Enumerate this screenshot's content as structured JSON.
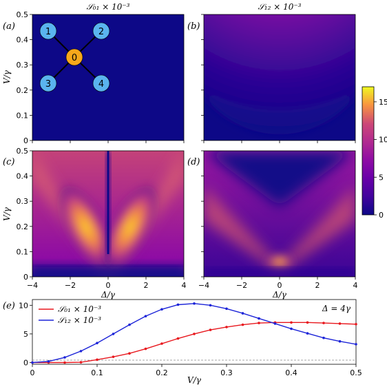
{
  "chart_data": [
    {
      "panel": "(a)",
      "type": "heatmap",
      "title": "𝒮₀₁ × 10⁻³",
      "xlabel": "",
      "ylabel": "V/γ",
      "xlim": [
        -4,
        4
      ],
      "ylim": [
        0,
        0.5
      ],
      "x_ticks": [],
      "y_ticks": [
        "0",
        "0.1",
        "0.2",
        "0.3",
        "0.4",
        "0.5"
      ],
      "description_values": "uniform near 0 over entire range",
      "inset_graph": {
        "nodes": [
          {
            "label": "0",
            "color": "#f7a81b",
            "pos": "center"
          },
          {
            "label": "1",
            "color": "#5ab4ef",
            "pos": "top-left"
          },
          {
            "label": "2",
            "color": "#5ab4ef",
            "pos": "top-right"
          },
          {
            "label": "3",
            "color": "#5ab4ef",
            "pos": "bottom-left"
          },
          {
            "label": "4",
            "color": "#5ab4ef",
            "pos": "bottom-right"
          }
        ],
        "edges": [
          [
            "0",
            "1"
          ],
          [
            "0",
            "2"
          ],
          [
            "0",
            "3"
          ],
          [
            "0",
            "4"
          ]
        ]
      }
    },
    {
      "panel": "(b)",
      "type": "heatmap",
      "title": "𝒮₁₂ × 10⁻³",
      "xlabel": "",
      "ylabel": "",
      "xlim": [
        -4,
        4
      ],
      "ylim": [
        0,
        0.5
      ],
      "x_ticks": [],
      "y_ticks": []
    },
    {
      "panel": "(c)",
      "type": "heatmap",
      "title": "",
      "xlabel": "Δ/γ",
      "ylabel": "V/γ",
      "xlim": [
        -4,
        4
      ],
      "ylim": [
        0,
        0.5
      ],
      "x_ticks": [
        "−4",
        "−2",
        "0",
        "2",
        "4"
      ],
      "y_ticks": [
        "0",
        "0.1",
        "0.2",
        "0.3",
        "0.4",
        "0.5"
      ]
    },
    {
      "panel": "(d)",
      "type": "heatmap",
      "title": "",
      "xlabel": "Δ/γ",
      "ylabel": "",
      "xlim": [
        -4,
        4
      ],
      "ylim": [
        0,
        0.5
      ],
      "x_ticks": [
        "−4",
        "−2",
        "0",
        "2",
        "4"
      ],
      "y_ticks": []
    },
    {
      "panel": "colorbar",
      "type": "colorbar",
      "range": [
        0,
        17
      ],
      "ticks": [
        "0",
        "5",
        "10",
        "15"
      ],
      "colormap": "plasma"
    },
    {
      "panel": "(e)",
      "type": "line",
      "title": "",
      "xlabel": "V/γ",
      "ylabel": "",
      "xlim": [
        0,
        0.5
      ],
      "ylim": [
        -0.3,
        11
      ],
      "x_ticks": [
        "0",
        "0.1",
        "0.2",
        "0.3",
        "0.4",
        "0.5"
      ],
      "y_ticks": [
        "0",
        "5",
        "10"
      ],
      "annotation": "Δ = 4γ",
      "legend_position": "top-left",
      "x": [
        0,
        0.025,
        0.05,
        0.075,
        0.1,
        0.125,
        0.15,
        0.175,
        0.2,
        0.225,
        0.25,
        0.275,
        0.3,
        0.325,
        0.35,
        0.375,
        0.4,
        0.425,
        0.45,
        0.475,
        0.5
      ],
      "series": [
        {
          "name": "𝒮₀₁ × 10⁻³",
          "color": "#e8171d",
          "values": [
            0,
            0,
            0,
            0.05,
            0.5,
            1.0,
            1.6,
            2.4,
            3.3,
            4.2,
            5.0,
            5.7,
            6.2,
            6.6,
            6.9,
            7.0,
            7.0,
            7.0,
            6.9,
            6.8,
            6.7
          ]
        },
        {
          "name": "𝒮₁₂ × 10⁻³",
          "color": "#1c24d8",
          "values": [
            0,
            0.2,
            0.9,
            2.0,
            3.4,
            5.0,
            6.6,
            8.1,
            9.3,
            10.1,
            10.3,
            10.0,
            9.4,
            8.6,
            7.7,
            6.8,
            5.9,
            5.1,
            4.3,
            3.7,
            3.2
          ]
        }
      ]
    }
  ]
}
